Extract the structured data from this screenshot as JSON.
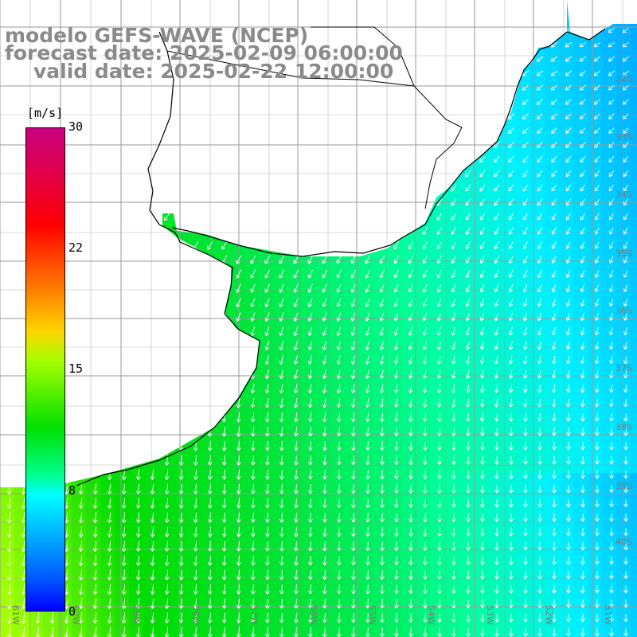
{
  "title": {
    "line1": "modelo GEFS-WAVE (NCEP)",
    "line2": "forecast date: 2025-02-09 06:00:00",
    "line3": "valid date: 2025-02-22 12:00:00"
  },
  "colorbar": {
    "unit": "[m/s]",
    "ticks": [
      "30",
      "22",
      "15",
      "8",
      "0"
    ],
    "tick_values": [
      30,
      22,
      15,
      8,
      0
    ],
    "range": [
      0,
      30
    ],
    "colors": [
      "#c8007e",
      "#ff0000",
      "#ff7000",
      "#ffd400",
      "#00e000",
      "#00ffff",
      "#0050ff",
      "#0000ff"
    ]
  },
  "lat_labels": [
    "32S",
    "33S",
    "34S",
    "35S",
    "36S",
    "37S",
    "38S",
    "39S",
    "40S"
  ],
  "lon_labels": [
    "61W",
    "60W",
    "59W",
    "58W",
    "57W",
    "56W",
    "55W",
    "54W",
    "53W",
    "52W",
    "51W"
  ],
  "field": {
    "variable": "wind speed",
    "range_shown": [
      7,
      14
    ],
    "land_color": "#ffffff",
    "grid_color": "#9a9a9a",
    "arrow_color": "#ffffff",
    "coast_color": "#000000"
  }
}
